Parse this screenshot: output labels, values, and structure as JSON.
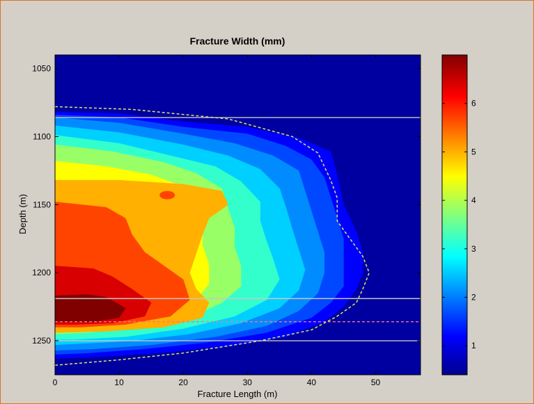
{
  "chart_data": {
    "type": "heatmap",
    "subtype": "filled-contour",
    "title": "Fracture Width (mm)",
    "xlabel": "Fracture Length (m)",
    "ylabel": "Depth (m)",
    "xlim": [
      0,
      57
    ],
    "ylim": [
      1275,
      1040
    ],
    "y_reversed": true,
    "x_ticks": [
      0,
      10,
      20,
      30,
      40,
      50
    ],
    "y_ticks": [
      1050,
      1100,
      1150,
      1200,
      1250
    ],
    "colormap": "jet",
    "colorbar": {
      "range": [
        0.4,
        7.0
      ],
      "ticks": [
        1,
        2,
        3,
        4,
        5,
        6
      ]
    },
    "contour_levels": [
      {
        "level": 0.9,
        "color": "#0000ff",
        "boundary": [
          [
            0,
            1082
          ],
          [
            10,
            1083
          ],
          [
            20,
            1089
          ],
          [
            30,
            1093
          ],
          [
            38,
            1101
          ],
          [
            43,
            1111
          ],
          [
            44,
            1128
          ],
          [
            45,
            1150
          ],
          [
            46,
            1160
          ],
          [
            47,
            1170
          ],
          [
            48,
            1185
          ],
          [
            48,
            1200
          ],
          [
            47,
            1212
          ],
          [
            45,
            1225
          ],
          [
            42,
            1236
          ],
          [
            36,
            1247
          ],
          [
            27,
            1254
          ],
          [
            16,
            1259
          ],
          [
            6,
            1262
          ],
          [
            0,
            1263
          ]
        ]
      },
      {
        "level": 1.5,
        "color": "#0048ff",
        "boundary": [
          [
            0,
            1084
          ],
          [
            10,
            1086
          ],
          [
            20,
            1093
          ],
          [
            30,
            1098
          ],
          [
            36,
            1107
          ],
          [
            40,
            1117
          ],
          [
            42,
            1130
          ],
          [
            43,
            1145
          ],
          [
            44,
            1160
          ],
          [
            45,
            1175
          ],
          [
            45,
            1195
          ],
          [
            45,
            1210
          ],
          [
            43,
            1222
          ],
          [
            40,
            1233
          ],
          [
            33,
            1244
          ],
          [
            24,
            1251
          ],
          [
            14,
            1256
          ],
          [
            5,
            1259
          ],
          [
            0,
            1260
          ]
        ]
      },
      {
        "level": 2.1,
        "color": "#008cff",
        "boundary": [
          [
            0,
            1086
          ],
          [
            10,
            1090
          ],
          [
            20,
            1098
          ],
          [
            28,
            1105
          ],
          [
            34,
            1114
          ],
          [
            38,
            1125
          ],
          [
            39,
            1140
          ],
          [
            40,
            1155
          ],
          [
            41,
            1170
          ],
          [
            42,
            1185
          ],
          [
            42,
            1200
          ],
          [
            41,
            1215
          ],
          [
            38,
            1228
          ],
          [
            33,
            1239
          ],
          [
            25,
            1247
          ],
          [
            15,
            1253
          ],
          [
            6,
            1256
          ],
          [
            0,
            1257
          ]
        ]
      },
      {
        "level": 2.7,
        "color": "#00d0ff",
        "boundary": [
          [
            0,
            1092
          ],
          [
            10,
            1097
          ],
          [
            20,
            1106
          ],
          [
            27,
            1114
          ],
          [
            32,
            1124
          ],
          [
            35,
            1138
          ],
          [
            36,
            1152
          ],
          [
            37,
            1168
          ],
          [
            38,
            1183
          ],
          [
            39,
            1198
          ],
          [
            38,
            1213
          ],
          [
            35,
            1226
          ],
          [
            29,
            1237
          ],
          [
            21,
            1245
          ],
          [
            12,
            1250
          ],
          [
            4,
            1252
          ],
          [
            0,
            1253
          ]
        ]
      },
      {
        "level": 3.3,
        "color": "#33ffcc",
        "boundary": [
          [
            0,
            1099
          ],
          [
            10,
            1105
          ],
          [
            18,
            1114
          ],
          [
            25,
            1122
          ],
          [
            29,
            1133
          ],
          [
            32,
            1148
          ],
          [
            32,
            1162
          ],
          [
            33,
            1177
          ],
          [
            34,
            1190
          ],
          [
            35,
            1205
          ],
          [
            33,
            1220
          ],
          [
            28,
            1232
          ],
          [
            20,
            1241
          ],
          [
            11,
            1247
          ],
          [
            3,
            1249
          ],
          [
            0,
            1249
          ]
        ]
      },
      {
        "level": 3.9,
        "color": "#99ff66",
        "boundary": [
          [
            0,
            1106
          ],
          [
            9,
            1111
          ],
          [
            17,
            1119
          ],
          [
            22,
            1127
          ],
          [
            26,
            1138
          ],
          [
            27,
            1153
          ],
          [
            28,
            1167
          ],
          [
            28,
            1181
          ],
          [
            29,
            1195
          ],
          [
            29,
            1210
          ],
          [
            26,
            1222
          ],
          [
            21,
            1233
          ],
          [
            13,
            1240
          ],
          [
            5,
            1244
          ],
          [
            0,
            1245
          ]
        ]
      },
      {
        "level": 4.5,
        "color": "#ffff00",
        "boundary": [
          [
            0,
            1118
          ],
          [
            8,
            1122
          ],
          [
            15,
            1128
          ],
          [
            19,
            1135
          ],
          [
            22,
            1146
          ],
          [
            23,
            1157
          ],
          [
            23,
            1168
          ],
          [
            23,
            1180
          ],
          [
            24,
            1194
          ],
          [
            24,
            1208
          ],
          [
            22,
            1220
          ],
          [
            18,
            1230
          ],
          [
            11,
            1237
          ],
          [
            4,
            1240
          ],
          [
            0,
            1241
          ]
        ]
      },
      {
        "level": 5.1,
        "color": "#ffb000",
        "boundary": [
          [
            0,
            1132
          ],
          [
            10,
            1132
          ],
          [
            20,
            1135
          ],
          [
            26,
            1140
          ],
          [
            27,
            1150
          ],
          [
            24,
            1160
          ],
          [
            23,
            1172
          ],
          [
            22,
            1186
          ],
          [
            21,
            1200
          ],
          [
            22,
            1212
          ],
          [
            24,
            1222
          ],
          [
            23,
            1233
          ],
          [
            17,
            1240
          ],
          [
            8,
            1243
          ],
          [
            0,
            1244
          ]
        ]
      },
      {
        "level": 5.7,
        "color": "#ff4400",
        "boundary": [
          [
            0,
            1148
          ],
          [
            8,
            1152
          ],
          [
            11,
            1160
          ],
          [
            12,
            1172
          ],
          [
            14,
            1185
          ],
          [
            17,
            1195
          ],
          [
            20,
            1205
          ],
          [
            21,
            1220
          ],
          [
            18,
            1232
          ],
          [
            11,
            1238
          ],
          [
            4,
            1240
          ],
          [
            0,
            1240
          ]
        ]
      },
      {
        "level": 6.3,
        "color": "#d80000",
        "boundary": [
          [
            0,
            1195
          ],
          [
            6,
            1197
          ],
          [
            9,
            1203
          ],
          [
            12,
            1212
          ],
          [
            15,
            1222
          ],
          [
            14,
            1232
          ],
          [
            9,
            1237
          ],
          [
            3,
            1238
          ],
          [
            0,
            1238
          ]
        ]
      },
      {
        "level": 6.8,
        "color": "#800000",
        "boundary": [
          [
            0,
            1217
          ],
          [
            5,
            1216
          ],
          [
            8,
            1218
          ],
          [
            11,
            1226
          ],
          [
            10,
            1233
          ],
          [
            6,
            1236
          ],
          [
            2,
            1236
          ],
          [
            0,
            1236
          ]
        ]
      }
    ],
    "annotations": {
      "fracture_outline": {
        "style": "dashed",
        "color": "#d8e870",
        "points": [
          [
            0,
            1078
          ],
          [
            12,
            1080
          ],
          [
            27,
            1087
          ],
          [
            37,
            1100
          ],
          [
            41,
            1112
          ],
          [
            43,
            1132
          ],
          [
            44,
            1145
          ],
          [
            44,
            1162
          ],
          [
            46,
            1175
          ],
          [
            48,
            1188
          ],
          [
            49,
            1200
          ],
          [
            48,
            1212
          ],
          [
            47,
            1222
          ],
          [
            44,
            1232
          ],
          [
            40,
            1242
          ],
          [
            32,
            1250
          ],
          [
            20,
            1259
          ],
          [
            10,
            1264
          ],
          [
            0,
            1268
          ]
        ]
      },
      "horizontal_lines": [
        {
          "y": 1086,
          "color": "#c8c8c8",
          "style": "solid"
        },
        {
          "y": 1219,
          "color": "#c8c8c8",
          "style": "solid"
        },
        {
          "y": 1250,
          "color": "#c8c8c8",
          "style": "solid"
        },
        {
          "y": 1236,
          "color": "#ff7090",
          "style": "dashed"
        }
      ],
      "islands": [
        {
          "x": 17.5,
          "y": 1143,
          "color": "#ff4400"
        }
      ]
    },
    "grid": false
  }
}
